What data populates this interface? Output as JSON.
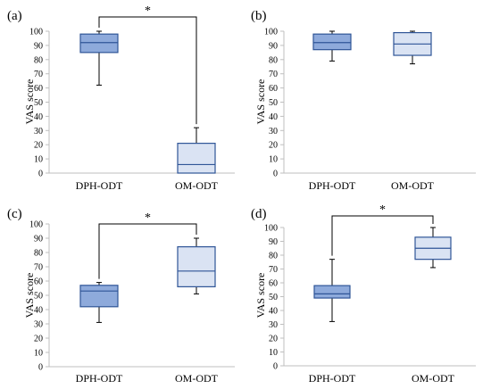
{
  "chart_data": [
    {
      "type": "box",
      "panel_label": "(a)",
      "ylabel": "VAS score",
      "ylim": [
        0,
        100
      ],
      "yticks": [
        0,
        10,
        20,
        30,
        40,
        50,
        60,
        70,
        80,
        90,
        100
      ],
      "categories": [
        "DPH-ODT",
        "OM-ODT"
      ],
      "boxes": [
        {
          "min": 62,
          "q1": 85,
          "median": 92,
          "q3": 98,
          "max": 100
        },
        {
          "min": 0,
          "q1": 0,
          "median": 6,
          "q3": 21,
          "max": 32
        }
      ],
      "significance": {
        "from": 0,
        "to": 1,
        "label": "*"
      }
    },
    {
      "type": "box",
      "panel_label": "(b)",
      "ylabel": "VAS score",
      "ylim": [
        0,
        100
      ],
      "yticks": [
        0,
        10,
        20,
        30,
        40,
        50,
        60,
        70,
        80,
        90,
        100
      ],
      "categories": [
        "DPH-ODT",
        "OM-ODT"
      ],
      "boxes": [
        {
          "min": 79,
          "q1": 87,
          "median": 92,
          "q3": 98,
          "max": 100
        },
        {
          "min": 77,
          "q1": 83,
          "median": 91,
          "q3": 99,
          "max": 100
        }
      ]
    },
    {
      "type": "box",
      "panel_label": "(c)",
      "ylabel": "VAS score",
      "ylim": [
        0,
        100
      ],
      "yticks": [
        0,
        10,
        20,
        30,
        40,
        50,
        60,
        70,
        80,
        90,
        100
      ],
      "categories": [
        "DPH-ODT",
        "OM-ODT"
      ],
      "boxes": [
        {
          "min": 31,
          "q1": 42,
          "median": 53,
          "q3": 57,
          "max": 59
        },
        {
          "min": 51,
          "q1": 56,
          "median": 67,
          "q3": 84,
          "max": 90
        }
      ],
      "significance": {
        "from": 0,
        "to": 1,
        "label": "*"
      }
    },
    {
      "type": "box",
      "panel_label": "(d)",
      "ylabel": "VAS score",
      "ylim": [
        0,
        100
      ],
      "yticks": [
        0,
        10,
        20,
        30,
        40,
        50,
        60,
        70,
        80,
        90,
        100
      ],
      "categories": [
        "DPH-ODT",
        "OM-ODT"
      ],
      "boxes": [
        {
          "min": 32,
          "q1": 49,
          "median": 52,
          "q3": 58,
          "max": 77
        },
        {
          "min": 71,
          "q1": 77,
          "median": 85,
          "q3": 93,
          "max": 100
        }
      ],
      "significance": {
        "from": 0,
        "to": 1,
        "label": "*"
      }
    }
  ],
  "colors": {
    "box_fill": [
      "#8eaadb",
      "#dae3f3"
    ],
    "box_stroke": "#2f5597",
    "axis": "#bfbfbf",
    "text": "#000000",
    "bracket": "#000000"
  }
}
